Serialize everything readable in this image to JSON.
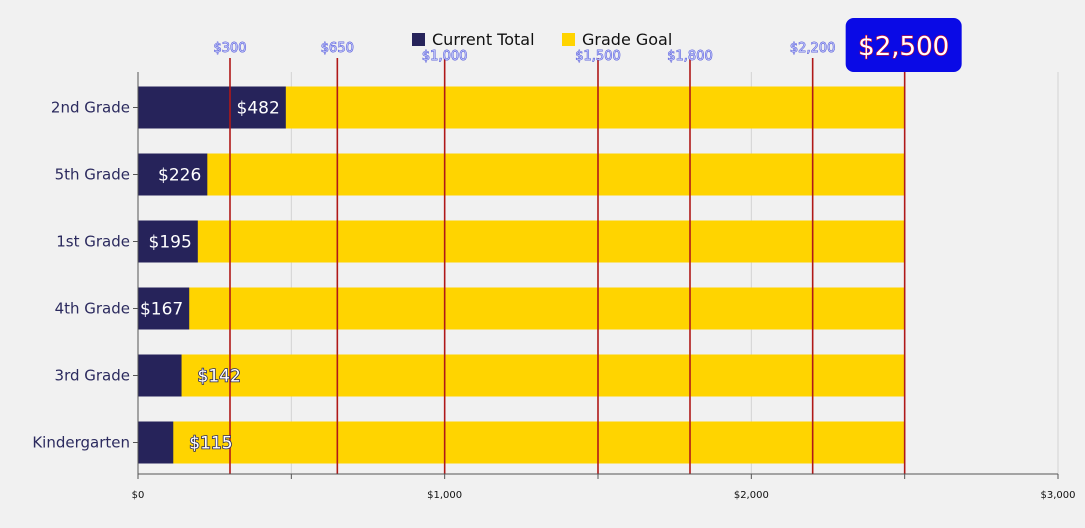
{
  "chart_data": {
    "type": "bar",
    "orientation": "horizontal",
    "categories": [
      "2nd Grade",
      "5th Grade",
      "1st Grade",
      "4th Grade",
      "3rd Grade",
      "Kindergarten"
    ],
    "series": [
      {
        "name": "Current Total",
        "values": [
          482,
          226,
          195,
          167,
          142,
          115
        ],
        "color": "#26235a"
      },
      {
        "name": "Grade Goal",
        "values": [
          2500,
          2500,
          2500,
          2500,
          2500,
          2500
        ],
        "color": "#ffd400"
      }
    ],
    "value_labels": [
      "$482",
      "$226",
      "$195",
      "$167",
      "$142",
      "$115"
    ],
    "xlim": [
      0,
      3000
    ],
    "x_ticks": [
      0,
      1000,
      2000,
      3000
    ],
    "x_tick_labels": [
      "$0",
      "$1,000",
      "$2,000",
      "$3,000"
    ],
    "minor_x_ticks": [
      500,
      1500,
      2500
    ],
    "milestones": [
      {
        "value": 300,
        "label": "$300"
      },
      {
        "value": 650,
        "label": "$650"
      },
      {
        "value": 1000,
        "label": "$1,000"
      },
      {
        "value": 1500,
        "label": "$1,500"
      },
      {
        "value": 1800,
        "label": "$1,800"
      },
      {
        "value": 2200,
        "label": "$2,200"
      },
      {
        "value": 2500,
        "label": "$2,500"
      }
    ],
    "goal_label": "$2,500",
    "grid": true,
    "legend_position": "top-center",
    "title": "",
    "xlabel": "",
    "ylabel": ""
  },
  "colors": {
    "background": "#f1f1f1",
    "milestone_line": "#b01818",
    "goal_badge": "#0a0ae6",
    "gridline": "#d4d4d4"
  }
}
